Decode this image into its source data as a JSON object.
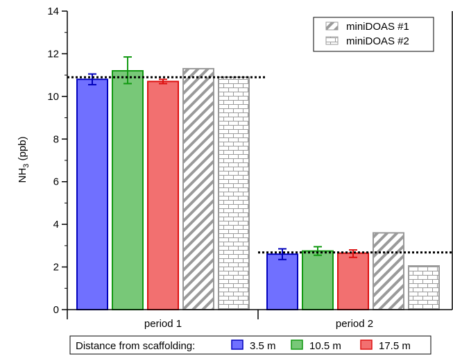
{
  "chart_data": {
    "type": "bar",
    "categories": [
      "period 1",
      "period 2"
    ],
    "ylabel": "NH",
    "ylabel_sub": "3",
    "ylabel_unit": " (ppb)",
    "ylim": [
      0,
      14
    ],
    "yticks": [
      0,
      2,
      4,
      6,
      8,
      10,
      12,
      14
    ],
    "grid": false,
    "legend_position": "top-right",
    "series": [
      {
        "name": "3.5 m",
        "values": [
          10.8,
          2.6
        ],
        "err_low": [
          10.55,
          2.35
        ],
        "err_high": [
          11.05,
          2.85
        ],
        "fill": "#7070ff",
        "stroke": "#0000bb",
        "pattern": "solid"
      },
      {
        "name": "10.5 m",
        "values": [
          11.2,
          2.75
        ],
        "err_low": [
          10.6,
          2.55
        ],
        "err_high": [
          11.85,
          2.95
        ],
        "fill": "#78c878",
        "stroke": "#119911",
        "pattern": "solid"
      },
      {
        "name": "17.5 m",
        "values": [
          10.7,
          2.65
        ],
        "err_low": [
          10.6,
          2.45
        ],
        "err_high": [
          10.8,
          2.8
        ],
        "fill": "#f27070",
        "stroke": "#dd1111",
        "pattern": "solid"
      },
      {
        "name": "miniDOAS #1",
        "values": [
          11.3,
          3.6
        ],
        "fill": "#ffffff",
        "stroke": "#999999",
        "pattern": "hatch"
      },
      {
        "name": "miniDOAS #2",
        "values": [
          10.9,
          2.05
        ],
        "fill": "#ffffff",
        "stroke": "#999999",
        "pattern": "brick"
      }
    ],
    "reference_lines": [
      {
        "category": "period 1",
        "value": 10.9
      },
      {
        "category": "period 2",
        "value": 2.68
      }
    ],
    "legend_top": {
      "items": [
        "miniDOAS #1",
        "miniDOAS #2"
      ]
    },
    "legend_bottom": {
      "title": "Distance from scaffolding:",
      "items": [
        "3.5 m",
        "10.5 m",
        "17.5 m"
      ]
    }
  }
}
